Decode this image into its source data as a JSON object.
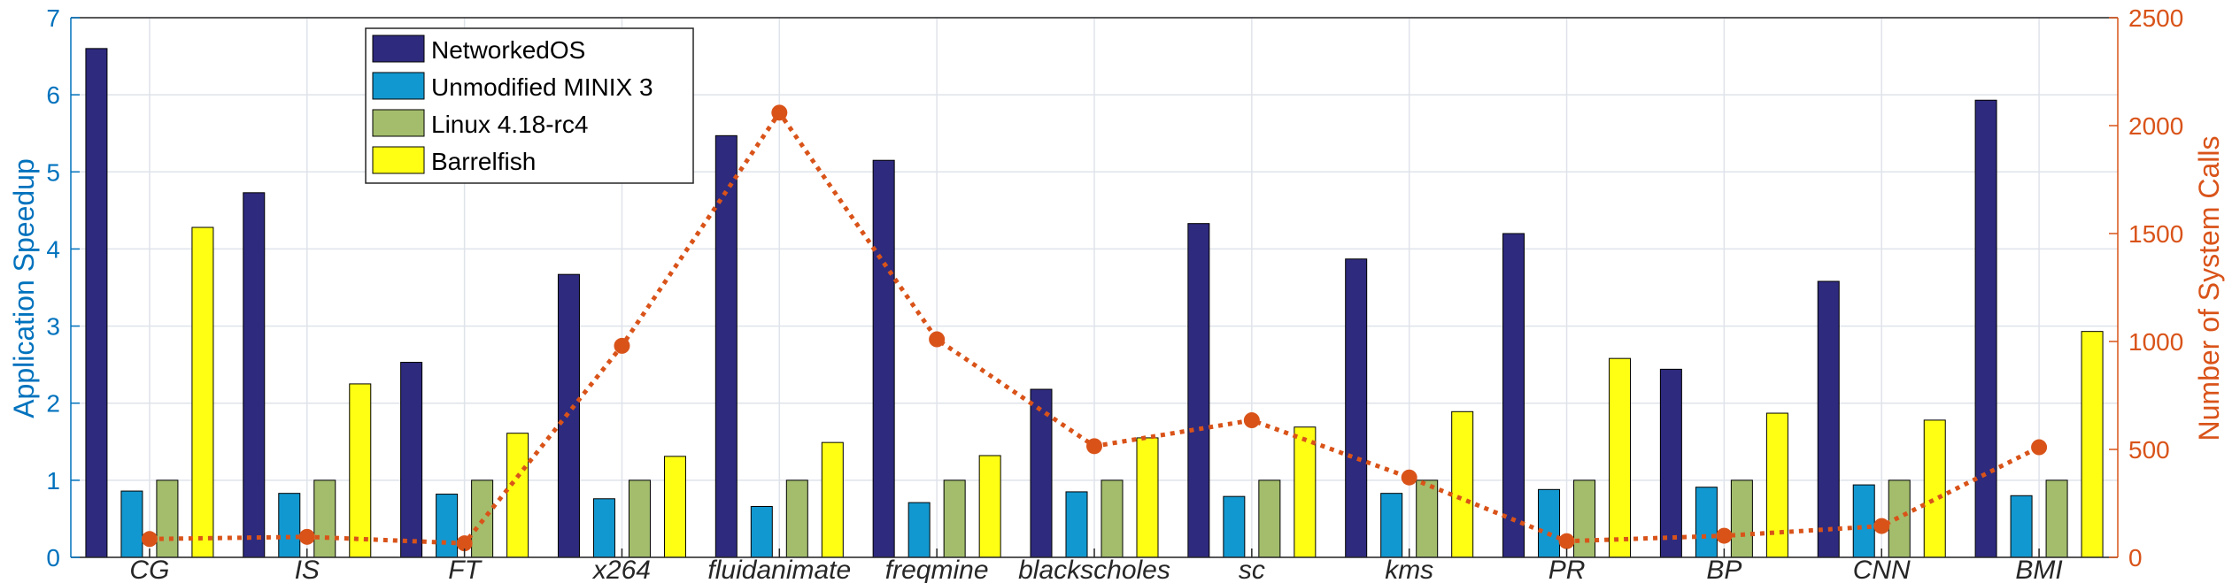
{
  "chart_data": {
    "type": "bar",
    "categories": [
      "CG",
      "IS",
      "FT",
      "x264",
      "fluidanimate",
      "freqmine",
      "blackscholes",
      "sc",
      "kms",
      "PR",
      "BP",
      "CNN",
      "BMI"
    ],
    "series": [
      {
        "name": "NetworkedOS",
        "color": "#2e2a7e",
        "values": [
          6.6,
          4.73,
          2.53,
          3.67,
          5.47,
          5.15,
          2.18,
          4.33,
          3.87,
          4.2,
          2.44,
          3.58,
          5.93
        ]
      },
      {
        "name": "Unmodified MINIX 3",
        "color": "#1298d0",
        "values": [
          0.86,
          0.83,
          0.82,
          0.76,
          0.66,
          0.71,
          0.85,
          0.79,
          0.83,
          0.88,
          0.91,
          0.94,
          0.8
        ]
      },
      {
        "name": "Linux 4.18-rc4",
        "color": "#a3bd6c",
        "values": [
          1.0,
          1.0,
          1.0,
          1.0,
          1.0,
          1.0,
          1.0,
          1.0,
          1.0,
          1.0,
          1.0,
          1.0,
          1.0
        ]
      },
      {
        "name": "Barrelfish",
        "color": "#ffff14",
        "values": [
          4.28,
          2.25,
          1.61,
          1.31,
          1.49,
          1.32,
          1.55,
          1.69,
          1.89,
          2.58,
          1.87,
          1.78,
          2.93
        ]
      }
    ],
    "line_series": {
      "name": "Number of System Calls",
      "color": "#d95319",
      "values": [
        85,
        95,
        65,
        980,
        2060,
        1010,
        515,
        635,
        370,
        75,
        100,
        145,
        510
      ]
    },
    "ylabel": "Application Speedup",
    "ylabel_color": "#0072bd",
    "ylim": [
      0,
      7
    ],
    "yticks": [
      0,
      1,
      2,
      3,
      4,
      5,
      6,
      7
    ],
    "y2label": "Number of System Calls",
    "y2label_color": "#d95319",
    "y2lim": [
      0,
      2500
    ],
    "y2ticks": [
      0,
      500,
      1000,
      1500,
      2000,
      2500
    ],
    "grid": true,
    "legend_position": "top-left"
  }
}
